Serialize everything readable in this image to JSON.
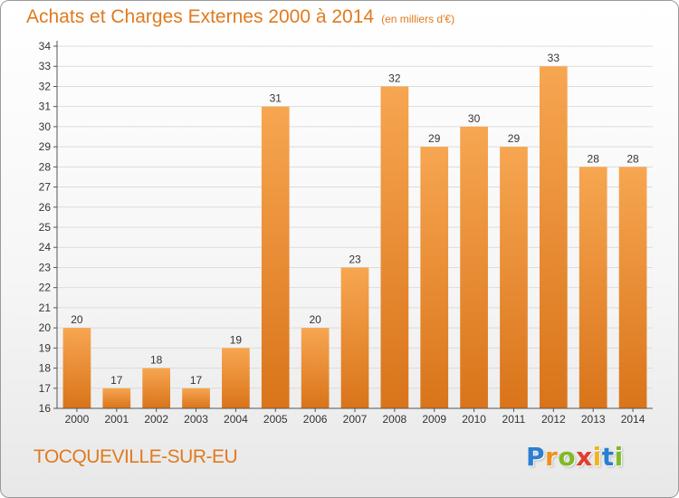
{
  "title": "Achats et Charges Externes 2000 à 2014",
  "unit_note": "(en milliers d'€)",
  "location": "TOCQUEVILLE-SUR-EU",
  "brand": {
    "letters": [
      {
        "char": "P",
        "color": "#2a7fd0"
      },
      {
        "char": "r",
        "color": "#f0901e"
      },
      {
        "char": "o",
        "color": "#7fba24"
      },
      {
        "char": "x",
        "color": "#e23c2e"
      },
      {
        "char": "i",
        "color": "#f0b41e"
      },
      {
        "char": "t",
        "color": "#2a7fd0"
      },
      {
        "char": "i",
        "color": "#7fba24"
      }
    ]
  },
  "colors": {
    "accent": "#e07a1f",
    "bar_light": "#f7a651",
    "bar_dark": "#d9741a",
    "grid": "#dcdcdc",
    "axis_text": "#333333"
  },
  "chart_data": {
    "type": "bar",
    "title": "Achats et Charges Externes 2000 à 2014",
    "subtitle": "(en milliers d'€)",
    "xlabel": "",
    "ylabel": "",
    "categories": [
      "2000",
      "2001",
      "2002",
      "2003",
      "2004",
      "2005",
      "2006",
      "2007",
      "2008",
      "2009",
      "2010",
      "2011",
      "2012",
      "2013",
      "2014"
    ],
    "values": [
      20,
      17,
      18,
      17,
      19,
      31,
      20,
      23,
      32,
      29,
      30,
      29,
      33,
      28,
      28
    ],
    "ylim": [
      16,
      34
    ],
    "ytick_step": 1,
    "grid": true,
    "data_labels": true
  }
}
